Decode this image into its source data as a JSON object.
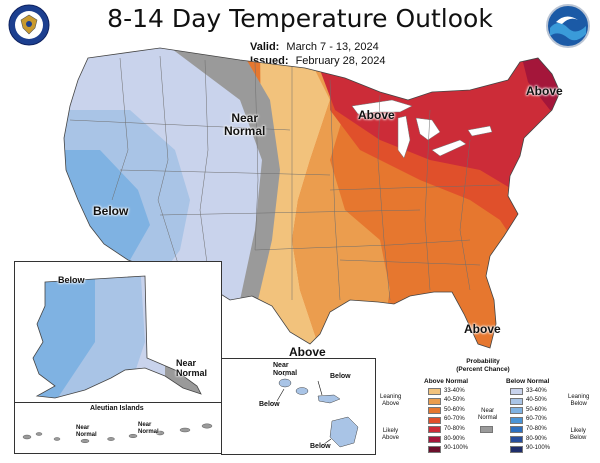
{
  "header": {
    "title": "8-14 Day Temperature Outlook",
    "valid_label": "Valid:",
    "valid_value": "March 7 - 13, 2024",
    "issued_label": "Issued:",
    "issued_value": "February 28, 2024"
  },
  "logos": {
    "left": "doc-seal-icon",
    "right": "noaa-logo-icon"
  },
  "map_labels": {
    "near_normal_west_line1": "Near",
    "near_normal_west_line2": "Normal",
    "above_great_lakes": "Above",
    "above_northeast": "Above",
    "below_west": "Below",
    "above_south": "Above",
    "above_florida": "Above",
    "alaska_below": "Below",
    "alaska_near_line1": "Near",
    "alaska_near_line2": "Normal",
    "aleutian_title": "Aleutian Islands",
    "aleutian_near1_line1": "Near",
    "aleutian_near1_line2": "Normal",
    "aleutian_near2_line1": "Near",
    "aleutian_near2_line2": "Normal",
    "hawaii_near_line1": "Near",
    "hawaii_near_line2": "Normal",
    "hawaii_below_1": "Below",
    "hawaii_below_2": "Below",
    "hawaii_below_3": "Below"
  },
  "legend": {
    "title_line1": "Probability",
    "title_line2": "(Percent Chance)",
    "above_header": "Above Normal",
    "below_header": "Below Normal",
    "leaning_above": [
      "Leaning",
      "Above"
    ],
    "likely_above": [
      "Likely",
      "Above"
    ],
    "leaning_below": [
      "Leaning",
      "Below"
    ],
    "likely_below": [
      "Likely",
      "Below"
    ],
    "near_normal": [
      "Near",
      "Normal"
    ],
    "ranges": [
      "33-40%",
      "40-50%",
      "50-60%",
      "60-70%",
      "70-80%",
      "80-90%",
      "90-100%"
    ],
    "above_colors": [
      "#f2c27c",
      "#eb9d4e",
      "#e6772f",
      "#e0502b",
      "#cc2c38",
      "#a4163a",
      "#6b0f2b"
    ],
    "below_colors": [
      "#c9d3ec",
      "#a9c4e6",
      "#7fb2e2",
      "#4a94d6",
      "#2d6fbf",
      "#274e9c",
      "#1f2e6b"
    ],
    "near_color": "#9a9a9a"
  },
  "colors": {
    "above_33": "#f2c27c",
    "above_40": "#eb9d4e",
    "above_50": "#e6772f",
    "above_60": "#e0502b",
    "above_70": "#cc2c38",
    "above_80": "#a4163a",
    "below_33": "#c9d3ec",
    "below_40": "#a9c4e6",
    "below_50": "#7fb2e2",
    "near": "#9a9a9a"
  }
}
